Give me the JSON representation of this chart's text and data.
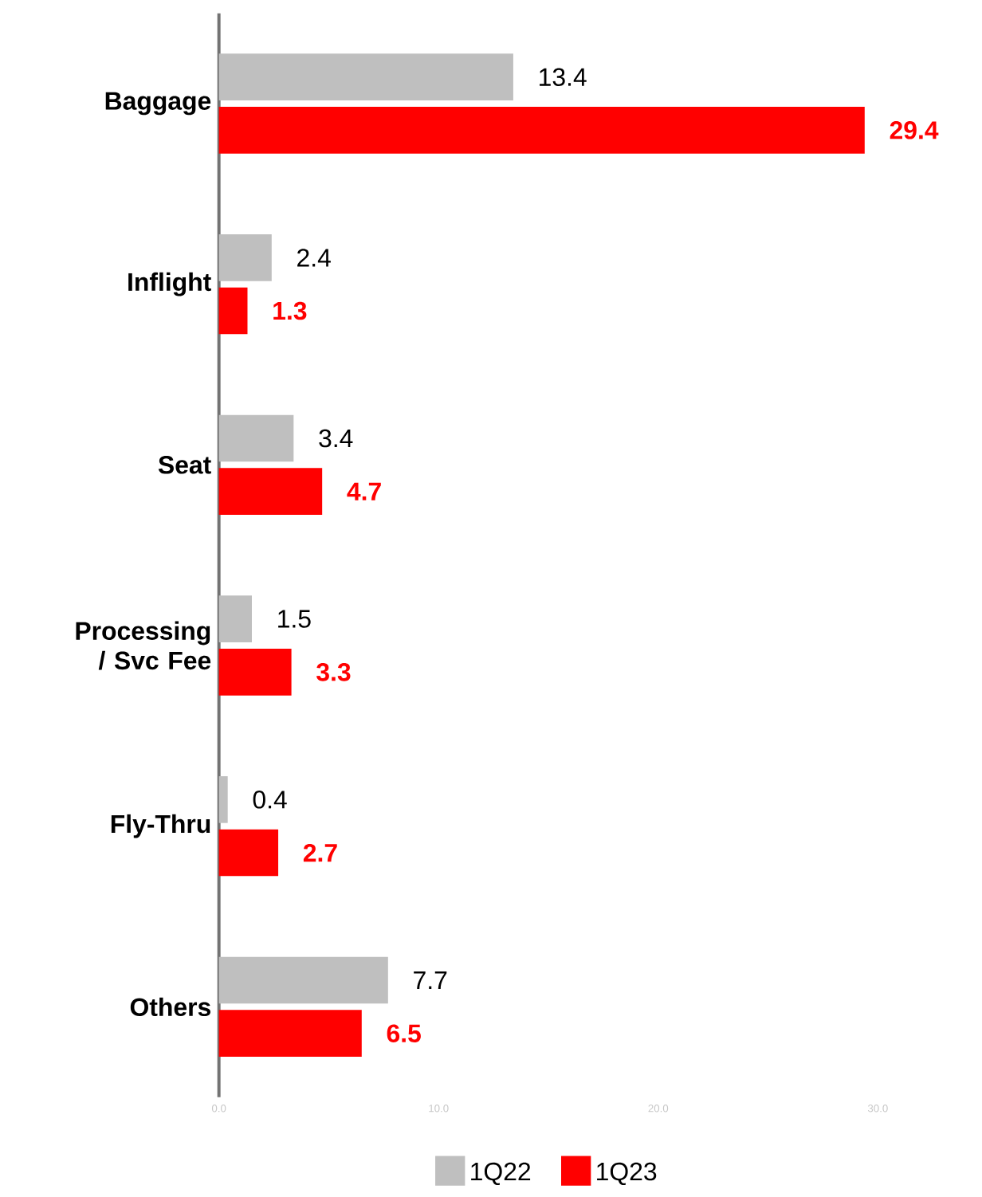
{
  "chart_data": {
    "type": "bar",
    "orientation": "horizontal",
    "categories": [
      "Baggage",
      "Inflight",
      "Seat",
      "Processing / Svc Fee",
      "Fly-Thru",
      "Others"
    ],
    "series": [
      {
        "name": "1Q22",
        "color": "#bfbfbf",
        "values": [
          13.4,
          2.4,
          3.4,
          1.5,
          0.4,
          7.7
        ],
        "value_labels": [
          "13.4",
          "2.4",
          "3.4",
          "1.5",
          "0.4",
          "7.7"
        ]
      },
      {
        "name": "1Q23",
        "color": "#ff0000",
        "values": [
          29.4,
          1.3,
          4.7,
          3.3,
          2.7,
          6.5
        ],
        "value_labels": [
          "29.4",
          "1.3",
          "4.7",
          "3.3",
          "2.7",
          "6.5"
        ]
      }
    ],
    "xlim": [
      0,
      30
    ],
    "xticks": [
      {
        "value": 0,
        "label": "0.0"
      },
      {
        "value": 10,
        "label": "10.0"
      },
      {
        "value": 20,
        "label": "20.0"
      },
      {
        "value": 30,
        "label": "30.0"
      }
    ],
    "legend": "bottom",
    "grid": false
  }
}
